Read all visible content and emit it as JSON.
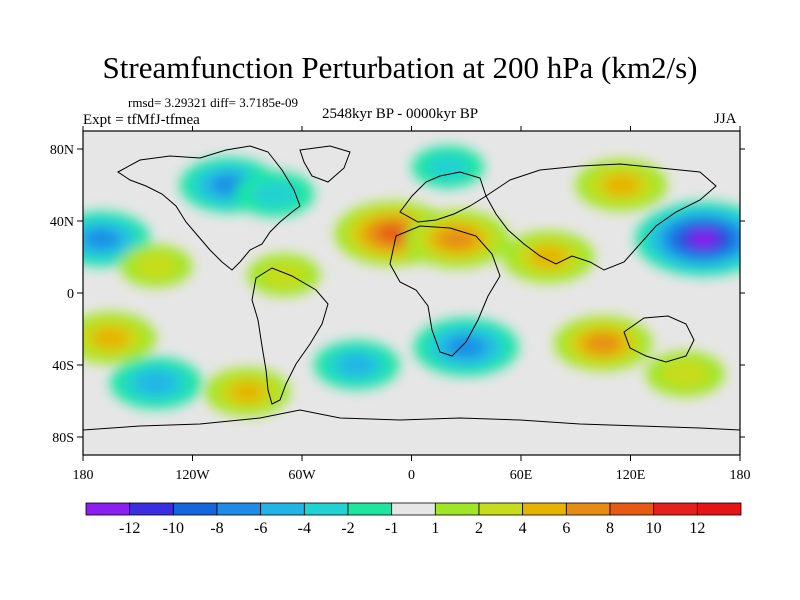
{
  "title": "Streamfunction Perturbation at 200 hPa (km2/s)",
  "subtitle_stats": "rmsd= 3.29321 diff= 3.7185e-09",
  "experiment_label": "Expt = tfMfJ-tfmea",
  "period_label": "2548kyr BP - 0000kyr BP",
  "season_label": "JJA",
  "map": {
    "projection": "cylindrical equidistant",
    "lon_range": [
      -180,
      180
    ],
    "lat_range": [
      -90,
      90
    ],
    "lon_ticks": [
      {
        "value": -180,
        "label": "180"
      },
      {
        "value": -120,
        "label": "120W"
      },
      {
        "value": -60,
        "label": "60W"
      },
      {
        "value": 0,
        "label": "0"
      },
      {
        "value": 60,
        "label": "60E"
      },
      {
        "value": 120,
        "label": "120E"
      },
      {
        "value": 180,
        "label": "180"
      }
    ],
    "lat_ticks": [
      {
        "value": 80,
        "label": "80N"
      },
      {
        "value": 40,
        "label": "40N"
      },
      {
        "value": 0,
        "label": "0"
      },
      {
        "value": -40,
        "label": "40S"
      },
      {
        "value": -80,
        "label": "80S"
      }
    ],
    "background_color": "#e6e6e6",
    "fields": [
      {
        "lon": -170,
        "lat": 30,
        "value": -6
      },
      {
        "lon": -165,
        "lat": -25,
        "value": 5
      },
      {
        "lon": -140,
        "lat": -50,
        "value": -5
      },
      {
        "lon": -140,
        "lat": 15,
        "value": 2
      },
      {
        "lon": -100,
        "lat": 60,
        "value": -6
      },
      {
        "lon": -90,
        "lat": -55,
        "value": 4
      },
      {
        "lon": -75,
        "lat": 55,
        "value": -3
      },
      {
        "lon": -70,
        "lat": 10,
        "value": 2
      },
      {
        "lon": -30,
        "lat": -40,
        "value": -4
      },
      {
        "lon": -10,
        "lat": 33,
        "value": 9
      },
      {
        "lon": 25,
        "lat": 30,
        "value": 7
      },
      {
        "lon": 20,
        "lat": 70,
        "value": -2
      },
      {
        "lon": 30,
        "lat": -30,
        "value": -7
      },
      {
        "lon": 75,
        "lat": 20,
        "value": 5
      },
      {
        "lon": 105,
        "lat": -28,
        "value": 6
      },
      {
        "lon": 115,
        "lat": 60,
        "value": 5
      },
      {
        "lon": 160,
        "lat": 30,
        "value": -12
      },
      {
        "lon": 150,
        "lat": -45,
        "value": 3
      }
    ]
  },
  "colorbar": {
    "levels": [
      "-12",
      "-10",
      "-8",
      "-6",
      "-4",
      "-2",
      "-1",
      "1",
      "2",
      "4",
      "6",
      "8",
      "10",
      "12"
    ],
    "colors": [
      "#8c1ef0",
      "#3a2ee0",
      "#1466dc",
      "#1e8ce6",
      "#23b4e6",
      "#20d2d2",
      "#1ee6a0",
      "#e6e6e6",
      "#a0e628",
      "#c8dc1e",
      "#e6b400",
      "#e68c14",
      "#e65a14",
      "#e61e1e",
      "#e61414"
    ]
  }
}
